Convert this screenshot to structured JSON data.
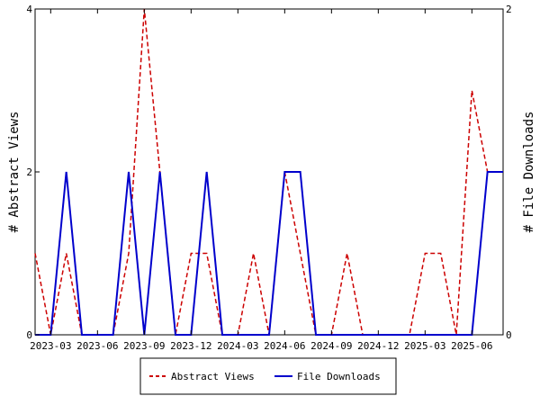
{
  "chart_data": {
    "type": "line",
    "x": [
      "2023-02",
      "2023-03",
      "2023-04",
      "2023-05",
      "2023-06",
      "2023-07",
      "2023-08",
      "2023-09",
      "2023-10",
      "2023-11",
      "2023-12",
      "2024-01",
      "2024-02",
      "2024-03",
      "2024-04",
      "2024-05",
      "2024-06",
      "2024-07",
      "2024-08",
      "2024-09",
      "2024-10",
      "2024-11",
      "2024-12",
      "2025-01",
      "2025-02",
      "2025-03",
      "2025-04",
      "2025-05",
      "2025-06",
      "2025-07",
      "2025-08"
    ],
    "x_tick_labels": [
      "2023-03",
      "2023-06",
      "2023-09",
      "2023-12",
      "2024-03",
      "2024-06",
      "2024-09",
      "2024-12",
      "2025-03",
      "2025-06"
    ],
    "series": [
      {
        "name": "Abstract Views",
        "axis": "left",
        "color": "#cc0000",
        "dash": "dashed",
        "values": [
          1,
          0,
          1,
          0,
          0,
          0,
          1,
          4,
          2,
          0,
          1,
          1,
          0,
          0,
          1,
          0,
          2,
          1,
          0,
          0,
          1,
          0,
          0,
          0,
          0,
          1,
          1,
          0,
          3,
          2,
          2
        ]
      },
      {
        "name": "File Downloads",
        "axis": "right",
        "color": "#0000cc",
        "dash": "solid",
        "values": [
          0,
          0,
          1,
          0,
          0,
          0,
          1,
          0,
          1,
          0,
          0,
          1,
          0,
          0,
          0,
          0,
          1,
          1,
          0,
          0,
          0,
          0,
          0,
          0,
          0,
          0,
          0,
          0,
          0,
          1,
          1
        ]
      }
    ],
    "ylabel_left": "# Abstract Views",
    "ylabel_right": "# File Downloads",
    "ylim_left": [
      0,
      4
    ],
    "ylim_right": [
      0,
      2
    ],
    "yticks_left": [
      0,
      2,
      4
    ],
    "yticks_right": [
      0,
      2
    ],
    "legend_position": "bottom"
  }
}
